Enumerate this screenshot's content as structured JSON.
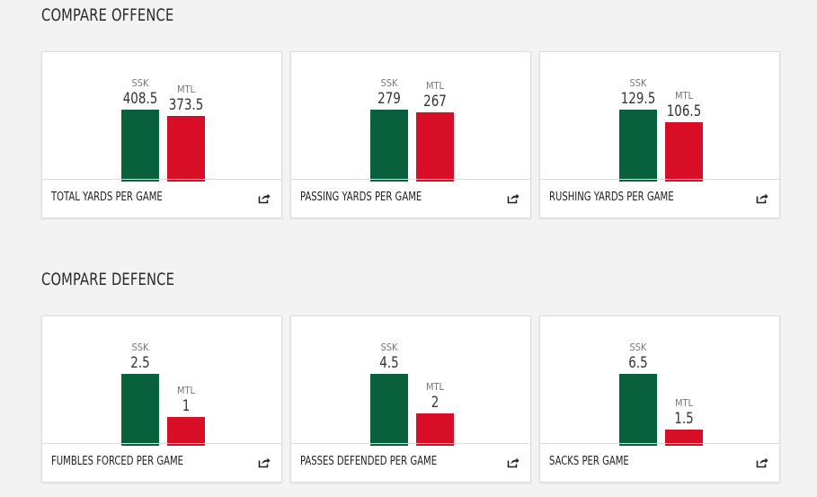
{
  "sections": [
    {
      "title": "COMPARE OFFENCE",
      "cards": [
        {
          "label": "TOTAL YARDS PER GAME",
          "teams": [
            {
              "name": "SSK",
              "value": "408.5",
              "num": 408.5
            },
            {
              "name": "MTL",
              "value": "373.5",
              "num": 373.5
            }
          ]
        },
        {
          "label": "PASSING YARDS PER GAME",
          "teams": [
            {
              "name": "SSK",
              "value": "279",
              "num": 279
            },
            {
              "name": "MTL",
              "value": "267",
              "num": 267
            }
          ]
        },
        {
          "label": "RUSHING YARDS PER GAME",
          "teams": [
            {
              "name": "SSK",
              "value": "129.5",
              "num": 129.5
            },
            {
              "name": "MTL",
              "value": "106.5",
              "num": 106.5
            }
          ]
        }
      ]
    },
    {
      "title": "COMPARE DEFENCE",
      "cards": [
        {
          "label": "FUMBLES FORCED PER GAME",
          "teams": [
            {
              "name": "SSK",
              "value": "2.5",
              "num": 2.5
            },
            {
              "name": "MTL",
              "value": "1",
              "num": 1
            }
          ]
        },
        {
          "label": "PASSES DEFENDED PER GAME",
          "teams": [
            {
              "name": "SSK",
              "value": "4.5",
              "num": 4.5
            },
            {
              "name": "MTL",
              "value": "2",
              "num": 2
            }
          ]
        },
        {
          "label": "SACKS PER GAME",
          "teams": [
            {
              "name": "SSK",
              "value": "6.5",
              "num": 6.5
            },
            {
              "name": "MTL",
              "value": "1.5",
              "num": 1.5
            }
          ]
        }
      ]
    }
  ],
  "colors": {
    "SSK": "#08603c",
    "MTL": "#d80e26"
  },
  "icons": {
    "share": "share-icon"
  }
}
